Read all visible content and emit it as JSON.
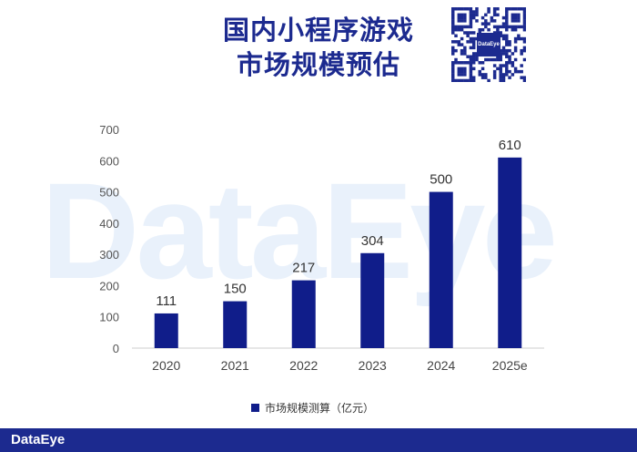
{
  "title_line1": "国内小程序游戏",
  "title_line2": "市场规模预估",
  "watermark_text": "DataEye",
  "footer_logo": "DataEye",
  "qr_center_text": "DataEye",
  "chart_data": {
    "type": "bar",
    "categories": [
      "2020",
      "2021",
      "2022",
      "2023",
      "2024",
      "2025e"
    ],
    "series": [
      {
        "name": "市场规模测算（亿元）",
        "values": [
          111,
          150,
          217,
          304,
          500,
          610
        ],
        "color": "#101d8a"
      }
    ],
    "value_labels": [
      "111",
      "150",
      "217",
      "304",
      "500",
      "610"
    ],
    "ylim": [
      0,
      700
    ],
    "yticks": [
      "0",
      "100",
      "200",
      "300",
      "400",
      "500",
      "600",
      "700"
    ],
    "ytick_values": [
      0,
      100,
      200,
      300,
      400,
      500,
      600,
      700
    ],
    "grid": false,
    "legend_position": "bottom"
  },
  "legend_label": "市场规模测算（亿元）"
}
